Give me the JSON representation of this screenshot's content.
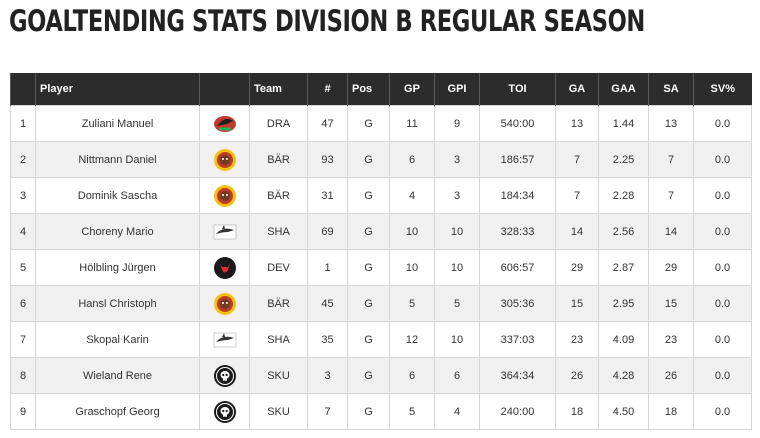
{
  "page_title": "GOALTENDING STATS DIVISION B REGULAR SEASON",
  "columns": {
    "rank": "",
    "player": "Player",
    "logo": "",
    "team": "Team",
    "num": "#",
    "pos": "Pos",
    "gp": "GP",
    "gpi": "GPI",
    "toi": "TOI",
    "ga": "GA",
    "gaa": "GAA",
    "sa": "SA",
    "svp": "SV%"
  },
  "rows": [
    {
      "rank": "1",
      "player": "Zuliani Manuel",
      "logo": "dra-logo",
      "team": "DRA",
      "num": "47",
      "pos": "G",
      "gp": "11",
      "gpi": "9",
      "toi": "540:00",
      "ga": "13",
      "gaa": "1.44",
      "sa": "13",
      "svp": "0.0"
    },
    {
      "rank": "2",
      "player": "Nittmann Daniel",
      "logo": "baer-logo",
      "team": "BÄR",
      "num": "93",
      "pos": "G",
      "gp": "6",
      "gpi": "3",
      "toi": "186:57",
      "ga": "7",
      "gaa": "2.25",
      "sa": "7",
      "svp": "0.0"
    },
    {
      "rank": "3",
      "player": "Dominik Sascha",
      "logo": "baer-logo",
      "team": "BÄR",
      "num": "31",
      "pos": "G",
      "gp": "4",
      "gpi": "3",
      "toi": "184:34",
      "ga": "7",
      "gaa": "2.28",
      "sa": "7",
      "svp": "0.0"
    },
    {
      "rank": "4",
      "player": "Choreny Mario",
      "logo": "sha-logo",
      "team": "SHA",
      "num": "69",
      "pos": "G",
      "gp": "10",
      "gpi": "10",
      "toi": "328:33",
      "ga": "14",
      "gaa": "2.56",
      "sa": "14",
      "svp": "0.0"
    },
    {
      "rank": "5",
      "player": "Hölbling Jürgen",
      "logo": "dev-logo",
      "team": "DEV",
      "num": "1",
      "pos": "G",
      "gp": "10",
      "gpi": "10",
      "toi": "606:57",
      "ga": "29",
      "gaa": "2.87",
      "sa": "29",
      "svp": "0.0"
    },
    {
      "rank": "6",
      "player": "Hansl Christoph",
      "logo": "baer-logo",
      "team": "BÄR",
      "num": "45",
      "pos": "G",
      "gp": "5",
      "gpi": "5",
      "toi": "305:36",
      "ga": "15",
      "gaa": "2.95",
      "sa": "15",
      "svp": "0.0"
    },
    {
      "rank": "7",
      "player": "Skopal Karin",
      "logo": "sha-logo",
      "team": "SHA",
      "num": "35",
      "pos": "G",
      "gp": "12",
      "gpi": "10",
      "toi": "337:03",
      "ga": "23",
      "gaa": "4.09",
      "sa": "23",
      "svp": "0.0"
    },
    {
      "rank": "8",
      "player": "Wieland Rene",
      "logo": "sku-logo",
      "team": "SKU",
      "num": "3",
      "pos": "G",
      "gp": "6",
      "gpi": "6",
      "toi": "364:34",
      "ga": "26",
      "gaa": "4.28",
      "sa": "26",
      "svp": "0.0"
    },
    {
      "rank": "9",
      "player": "Graschopf Georg",
      "logo": "sku-logo",
      "team": "SKU",
      "num": "7",
      "pos": "G",
      "gp": "5",
      "gpi": "4",
      "toi": "240:00",
      "ga": "18",
      "gaa": "4.50",
      "sa": "18",
      "svp": "0.0"
    }
  ],
  "colors": {
    "header_bg": "#2c2c2c",
    "header_text": "#ffffff",
    "row_alt": "#f0f0f0",
    "border": "#d6d6d6"
  }
}
